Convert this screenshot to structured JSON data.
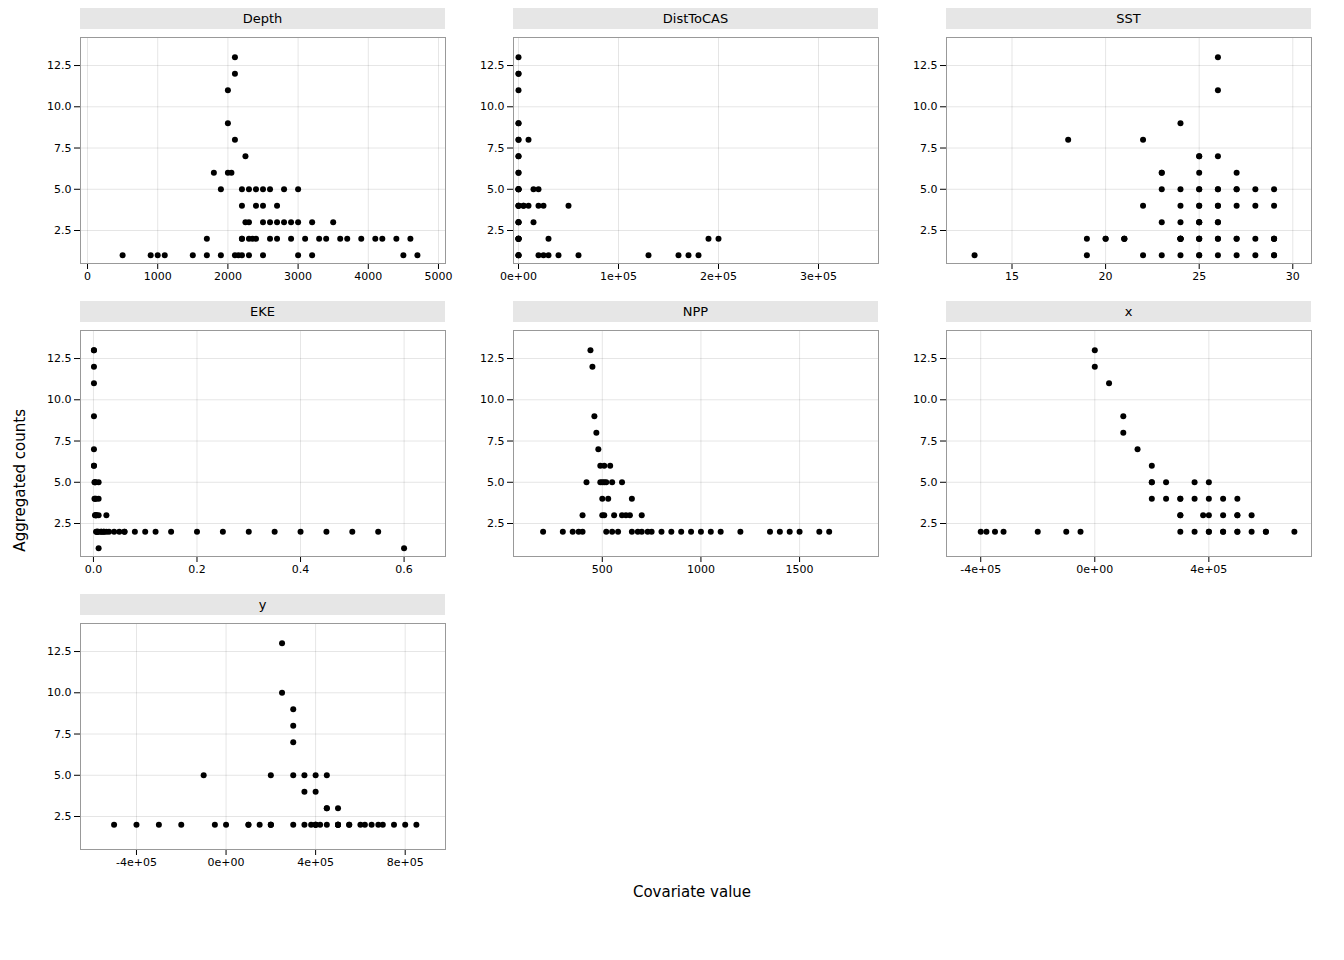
{
  "chart_data": [
    {
      "type": "scatter",
      "title": "Depth",
      "color": "black",
      "grid": true,
      "x": [
        500,
        900,
        1000,
        1100,
        1500,
        1700,
        1700,
        1800,
        1900,
        1900,
        2000,
        2000,
        2000,
        2050,
        2100,
        2100,
        2100,
        2100,
        2150,
        2200,
        2200,
        2200,
        2200,
        2200,
        2250,
        2250,
        2300,
        2300,
        2300,
        2300,
        2350,
        2400,
        2400,
        2400,
        2500,
        2500,
        2500,
        2500,
        2600,
        2600,
        2600,
        2700,
        2700,
        2700,
        2800,
        2800,
        2900,
        2900,
        3000,
        3000,
        3000,
        3100,
        3200,
        3200,
        3300,
        3400,
        3500,
        3600,
        3700,
        3900,
        4100,
        4200,
        4400,
        4500,
        4600,
        4700
      ],
      "values": [
        1,
        1,
        1,
        1,
        1,
        1,
        2,
        6,
        5,
        1,
        11,
        9,
        6,
        6,
        12,
        13,
        8,
        1,
        1,
        5,
        4,
        2,
        2,
        1,
        7,
        3,
        5,
        3,
        2,
        1,
        2,
        5,
        4,
        2,
        5,
        4,
        3,
        1,
        5,
        3,
        2,
        4,
        3,
        2,
        5,
        3,
        3,
        2,
        5,
        3,
        1,
        2,
        3,
        1,
        2,
        2,
        3,
        2,
        2,
        2,
        2,
        2,
        2,
        1,
        2,
        1
      ],
      "xlim": [
        -100,
        5100
      ],
      "xticks": [
        0,
        1000,
        2000,
        3000,
        4000,
        5000
      ],
      "ylim": [
        0.5,
        14.2
      ],
      "yticks": [
        2.5,
        {
          "value": 5,
          "label": "5.0"
        },
        7.5,
        {
          "value": 10,
          "label": "10.0"
        },
        12.5
      ]
    },
    {
      "type": "scatter",
      "title": "DistToCAS",
      "color": "black",
      "grid": true,
      "x": [
        0,
        0,
        0,
        0,
        0,
        0,
        0,
        0,
        0,
        0,
        0,
        0,
        0,
        0,
        0,
        0,
        0,
        0,
        0,
        0,
        0,
        0,
        0,
        0,
        0,
        0,
        0,
        0,
        0,
        0,
        5000,
        5000,
        10000,
        10000,
        15000,
        15000,
        20000,
        20000,
        20000,
        25000,
        25000,
        30000,
        30000,
        40000,
        50000,
        60000,
        130000,
        160000,
        170000,
        180000,
        190000,
        200000
      ],
      "values": [
        13,
        12,
        12,
        11,
        9,
        9,
        8,
        8,
        7,
        7,
        6,
        6,
        5,
        5,
        5,
        5,
        4,
        4,
        4,
        3,
        3,
        3,
        2,
        2,
        2,
        2,
        2,
        1,
        1,
        1,
        4,
        4,
        8,
        4,
        5,
        3,
        5,
        4,
        1,
        4,
        1,
        2,
        1,
        1,
        4,
        1,
        1,
        1,
        1,
        1,
        2,
        2
      ],
      "xlim": [
        -5000,
        360000
      ],
      "xticks": [
        {
          "value": 0,
          "label": "0e+00"
        },
        {
          "value": 100000,
          "label": "1e+05"
        },
        {
          "value": 200000,
          "label": "2e+05"
        },
        {
          "value": 300000,
          "label": "3e+05"
        }
      ],
      "ylim": [
        0.5,
        14.2
      ],
      "yticks": [
        2.5,
        {
          "value": 5,
          "label": "5.0"
        },
        7.5,
        {
          "value": 10,
          "label": "10.0"
        },
        12.5
      ]
    },
    {
      "type": "scatter",
      "title": "SST",
      "color": "black",
      "grid": true,
      "x": [
        13,
        18,
        19,
        19,
        20,
        20,
        21,
        21,
        21,
        22,
        22,
        22,
        23,
        23,
        23,
        23,
        23,
        24,
        24,
        24,
        24,
        24,
        24,
        24,
        24,
        24,
        24,
        25,
        25,
        25,
        25,
        25,
        25,
        25,
        25,
        25,
        25,
        25,
        25,
        25,
        25,
        25,
        26,
        26,
        26,
        26,
        26,
        26,
        26,
        26,
        26,
        26,
        26,
        26,
        27,
        27,
        27,
        27,
        27,
        27,
        27,
        28,
        28,
        28,
        28,
        29,
        29,
        29,
        29,
        29,
        29,
        29
      ],
      "values": [
        1,
        8,
        2,
        1,
        2,
        2,
        2,
        2,
        2,
        8,
        4,
        1,
        6,
        6,
        5,
        3,
        1,
        9,
        5,
        4,
        3,
        2,
        2,
        2,
        2,
        2,
        1,
        7,
        7,
        6,
        5,
        5,
        4,
        4,
        3,
        3,
        3,
        2,
        2,
        2,
        1,
        1,
        13,
        11,
        7,
        5,
        5,
        4,
        4,
        3,
        3,
        2,
        2,
        1,
        6,
        5,
        5,
        4,
        2,
        2,
        1,
        5,
        4,
        2,
        1,
        5,
        4,
        2,
        2,
        2,
        1,
        1
      ],
      "xlim": [
        11.5,
        31
      ],
      "xticks": [
        15,
        20,
        25,
        30
      ],
      "ylim": [
        0.5,
        14.2
      ],
      "yticks": [
        2.5,
        {
          "value": 5,
          "label": "5.0"
        },
        7.5,
        {
          "value": 10,
          "label": "10.0"
        },
        12.5
      ]
    },
    {
      "type": "scatter",
      "title": "EKE",
      "color": "black",
      "grid": true,
      "x": [
        0.001,
        0.001,
        0.001,
        0.001,
        0.001,
        0.001,
        0.001,
        0.001,
        0.002,
        0.002,
        0.003,
        0.003,
        0.003,
        0.004,
        0.004,
        0.005,
        0.005,
        0.005,
        0.006,
        0.007,
        0.007,
        0.008,
        0.01,
        0.01,
        0.01,
        0.01,
        0.01,
        0.015,
        0.015,
        0.02,
        0.02,
        0.025,
        0.025,
        0.03,
        0.04,
        0.05,
        0.06,
        0.06,
        0.08,
        0.1,
        0.12,
        0.15,
        0.2,
        0.25,
        0.3,
        0.35,
        0.4,
        0.45,
        0.5,
        0.55,
        0.6
      ],
      "values": [
        13,
        13,
        12,
        11,
        9,
        7,
        6,
        6,
        5,
        4,
        5,
        4,
        3,
        5,
        3,
        4,
        3,
        2,
        3,
        2,
        2,
        2,
        5,
        4,
        3,
        2,
        1,
        2,
        2,
        2,
        2,
        3,
        2,
        2,
        2,
        2,
        2,
        2,
        2,
        2,
        2,
        2,
        2,
        2,
        2,
        2,
        2,
        2,
        2,
        2,
        1
      ],
      "xlim": [
        -0.025,
        0.68
      ],
      "xticks": [
        {
          "value": 0,
          "label": "0.0"
        },
        0.2,
        0.4,
        0.6
      ],
      "ylim": [
        0.5,
        14.2
      ],
      "yticks": [
        2.5,
        {
          "value": 5,
          "label": "5.0"
        },
        7.5,
        {
          "value": 10,
          "label": "10.0"
        },
        12.5
      ]
    },
    {
      "type": "scatter",
      "title": "NPP",
      "color": "black",
      "grid": true,
      "x": [
        200,
        300,
        350,
        380,
        400,
        400,
        420,
        440,
        450,
        460,
        470,
        480,
        490,
        490,
        500,
        500,
        500,
        510,
        510,
        510,
        520,
        520,
        530,
        540,
        550,
        550,
        560,
        580,
        600,
        600,
        620,
        640,
        650,
        650,
        680,
        700,
        700,
        730,
        750,
        800,
        850,
        900,
        950,
        1000,
        1050,
        1100,
        1200,
        1350,
        1400,
        1450,
        1500,
        1600,
        1650
      ],
      "values": [
        2,
        2,
        2,
        2,
        3,
        2,
        5,
        13,
        12,
        9,
        8,
        7,
        6,
        5,
        5,
        4,
        3,
        6,
        5,
        3,
        5,
        2,
        4,
        6,
        5,
        2,
        3,
        2,
        5,
        3,
        3,
        3,
        4,
        2,
        2,
        3,
        2,
        2,
        2,
        2,
        2,
        2,
        2,
        2,
        2,
        2,
        2,
        2,
        2,
        2,
        2,
        2,
        2
      ],
      "xlim": [
        50,
        1900
      ],
      "xticks": [
        500,
        1000,
        1500
      ],
      "ylim": [
        0.5,
        14.2
      ],
      "yticks": [
        2.5,
        {
          "value": 5,
          "label": "5.0"
        },
        7.5,
        {
          "value": 10,
          "label": "10.0"
        },
        12.5
      ]
    },
    {
      "type": "scatter",
      "title": "x",
      "color": "black",
      "grid": true,
      "x": [
        -400000,
        -380000,
        -350000,
        -320000,
        -200000,
        -100000,
        -50000,
        0,
        0,
        50000,
        100000,
        100000,
        150000,
        200000,
        200000,
        200000,
        200000,
        250000,
        250000,
        300000,
        300000,
        300000,
        300000,
        300000,
        350000,
        350000,
        350000,
        380000,
        400000,
        400000,
        400000,
        400000,
        400000,
        450000,
        450000,
        450000,
        450000,
        500000,
        500000,
        500000,
        500000,
        500000,
        550000,
        550000,
        600000,
        600000,
        700000
      ],
      "values": [
        2,
        2,
        2,
        2,
        2,
        2,
        2,
        13,
        12,
        11,
        9,
        8,
        7,
        6,
        5,
        5,
        4,
        5,
        4,
        4,
        4,
        3,
        3,
        2,
        5,
        4,
        2,
        3,
        5,
        4,
        3,
        2,
        2,
        4,
        3,
        2,
        2,
        4,
        3,
        3,
        2,
        2,
        3,
        2,
        2,
        2,
        2
      ],
      "xlim": [
        -520000,
        760000
      ],
      "xticks": [
        {
          "value": -400000,
          "label": "-4e+05"
        },
        {
          "value": 0,
          "label": "0e+00"
        },
        {
          "value": 400000,
          "label": "4e+05"
        }
      ],
      "ylim": [
        0.5,
        14.2
      ],
      "yticks": [
        2.5,
        {
          "value": 5,
          "label": "5.0"
        },
        7.5,
        {
          "value": 10,
          "label": "10.0"
        },
        12.5
      ]
    },
    {
      "type": "scatter",
      "title": "y",
      "color": "black",
      "grid": true,
      "x": [
        -500000,
        -400000,
        -300000,
        -200000,
        -100000,
        -50000,
        0,
        100000,
        100000,
        150000,
        200000,
        200000,
        200000,
        200000,
        250000,
        250000,
        300000,
        300000,
        300000,
        300000,
        300000,
        350000,
        350000,
        350000,
        380000,
        400000,
        400000,
        400000,
        400000,
        400000,
        420000,
        450000,
        450000,
        450000,
        450000,
        500000,
        500000,
        500000,
        500000,
        500000,
        550000,
        550000,
        600000,
        620000,
        650000,
        680000,
        700000,
        750000,
        800000,
        850000
      ],
      "values": [
        2,
        2,
        2,
        2,
        5,
        2,
        2,
        2,
        2,
        2,
        5,
        2,
        2,
        2,
        13,
        10,
        9,
        8,
        7,
        5,
        2,
        5,
        4,
        2,
        2,
        5,
        4,
        2,
        2,
        2,
        2,
        5,
        3,
        3,
        2,
        3,
        2,
        2,
        2,
        2,
        2,
        2,
        2,
        2,
        2,
        2,
        2,
        2,
        2,
        2
      ],
      "xlim": [
        -650000,
        980000
      ],
      "xticks": [
        {
          "value": -400000,
          "label": "-4e+05"
        },
        {
          "value": 0,
          "label": "0e+00"
        },
        {
          "value": 400000,
          "label": "4e+05"
        },
        {
          "value": 800000,
          "label": "8e+05"
        }
      ],
      "ylim": [
        0.5,
        14.2
      ],
      "yticks": [
        2.5,
        {
          "value": 5,
          "label": "5.0"
        },
        7.5,
        {
          "value": 10,
          "label": "10.0"
        },
        12.5
      ]
    }
  ],
  "xlabel": "Covariate value",
  "ylabel": "Aggregated counts"
}
